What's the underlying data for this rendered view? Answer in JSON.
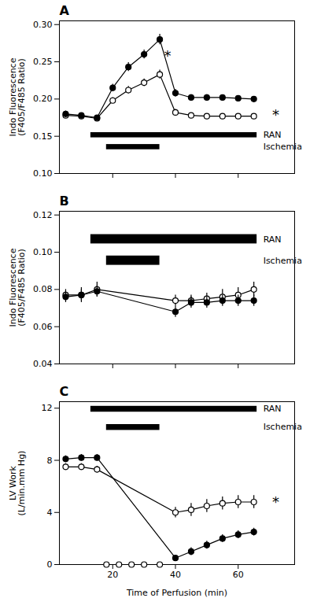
{
  "chart_data": [
    {
      "type": "line",
      "title": "A",
      "ylabel": "Indo Fluorescence\n(F405/F485 Ratio)",
      "xlim": [
        3,
        78
      ],
      "xticks": [
        20,
        40,
        60
      ],
      "ylim": [
        0.1,
        0.305
      ],
      "yticks": [
        {
          "value": 0.1,
          "label": "0.10"
        },
        0.15,
        {
          "value": 0.2,
          "label": "0.20"
        },
        0.25,
        {
          "value": 0.3,
          "label": "0.30"
        }
      ],
      "tick_labels": "y",
      "series": [
        {
          "color": "black",
          "marker": "filled_circle",
          "x": [
            5,
            10,
            15,
            20,
            25,
            30,
            35,
            40,
            45,
            50,
            55,
            60,
            65
          ],
          "values": [
            0.18,
            0.178,
            0.175,
            0.215,
            0.243,
            0.26,
            0.28,
            0.208,
            0.202,
            0.202,
            0.202,
            0.201,
            0.2
          ],
          "error": [
            0.004,
            0.003,
            0.003,
            0.005,
            0.006,
            0.006,
            0.007,
            0.005,
            0.004,
            0.004,
            0.003,
            0.003,
            0.003
          ]
        },
        {
          "color": "black",
          "marker": "open_circle",
          "x": [
            5,
            10,
            15,
            20,
            25,
            30,
            35,
            40,
            45,
            50,
            55,
            60,
            65
          ],
          "values": [
            0.178,
            0.177,
            0.174,
            0.198,
            0.212,
            0.222,
            0.233,
            0.182,
            0.178,
            0.177,
            0.177,
            0.177,
            0.177
          ],
          "error": [
            0.004,
            0.003,
            0.003,
            0.004,
            0.005,
            0.005,
            0.006,
            0.004,
            0.003,
            0.003,
            0.003,
            0.003,
            0.003
          ]
        }
      ],
      "annotations": [
        {
          "text": "*",
          "x": 37.5,
          "y": 0.258
        },
        {
          "text": "*",
          "x": 72,
          "y": 0.178
        }
      ],
      "bands": [
        {
          "text": "RAN",
          "x0": 13,
          "x1": 66,
          "y": 0.148,
          "height": 0.007,
          "text_x": 68,
          "text_y": 0.1515
        },
        {
          "text": "Ischemia",
          "x0": 18,
          "x1": 35,
          "y": 0.132,
          "height": 0.007,
          "text_x": 68,
          "text_y": 0.1355
        }
      ]
    },
    {
      "type": "line",
      "title": "B",
      "ylabel": "Indo Fluorescence\n(F405/F485 Ratio)",
      "xlim": [
        3,
        78
      ],
      "xticks": [
        20,
        40,
        60
      ],
      "ylim": [
        0.04,
        0.122
      ],
      "yticks": [
        0.04,
        0.06,
        0.08,
        {
          "value": 0.1,
          "label": "0.10"
        },
        0.12
      ],
      "tick_labels": "y",
      "series": [
        {
          "color": "black",
          "marker": "filled_circle",
          "x": [
            5,
            10,
            15,
            40,
            45,
            50,
            55,
            60,
            65
          ],
          "values": [
            0.076,
            0.077,
            0.079,
            0.068,
            0.073,
            0.073,
            0.074,
            0.074,
            0.074
          ],
          "error": [
            0.003,
            0.003,
            0.003,
            0.003,
            0.003,
            0.003,
            0.003,
            0.003,
            0.003
          ]
        },
        {
          "color": "black",
          "marker": "open_circle",
          "x": [
            5,
            10,
            15,
            40,
            45,
            50,
            55,
            60,
            65
          ],
          "values": [
            0.077,
            0.077,
            0.08,
            0.074,
            0.074,
            0.075,
            0.076,
            0.077,
            0.08
          ],
          "error": [
            0.003,
            0.004,
            0.004,
            0.003,
            0.003,
            0.003,
            0.004,
            0.004,
            0.004
          ]
        }
      ],
      "bands": [
        {
          "text": "RAN",
          "x0": 13,
          "x1": 66,
          "y": 0.1045,
          "height": 0.005,
          "text_x": 68,
          "text_y": 0.107
        },
        {
          "text": "Ischemia",
          "x0": 18,
          "x1": 35,
          "y": 0.093,
          "height": 0.005,
          "text_x": 68,
          "text_y": 0.0955
        }
      ]
    },
    {
      "type": "line",
      "title": "C",
      "ylabel": "LV Work\n(L/min.mm Hg)",
      "xlabel": "Time of Perfusion (min)",
      "xlim": [
        3,
        78
      ],
      "xticks": [
        20,
        40,
        60
      ],
      "ylim": [
        0,
        12.5
      ],
      "yticks": [
        0,
        4,
        8,
        12
      ],
      "series": [
        {
          "color": "black",
          "marker": "filled_circle",
          "x": [
            5,
            10,
            15,
            40,
            45,
            50,
            55,
            60,
            65
          ],
          "values": [
            8.1,
            8.2,
            8.2,
            0.5,
            1.0,
            1.5,
            2.0,
            2.3,
            2.5
          ],
          "error": [
            0.25,
            0.25,
            0.25,
            0.2,
            0.3,
            0.3,
            0.3,
            0.3,
            0.3
          ]
        },
        {
          "color": "black",
          "marker": "open_circle",
          "x": [
            5,
            10,
            15,
            40,
            45,
            50,
            55,
            60,
            65
          ],
          "values": [
            7.5,
            7.5,
            7.3,
            4.0,
            4.2,
            4.5,
            4.7,
            4.8,
            4.8
          ],
          "error": [
            0.25,
            0.25,
            0.25,
            0.4,
            0.5,
            0.5,
            0.5,
            0.5,
            0.5
          ]
        },
        {
          "type": "scatter",
          "color": "black",
          "marker": "open_circle",
          "x": [
            18,
            22,
            26,
            30,
            35
          ],
          "values": [
            0.0,
            0.0,
            0.0,
            0.0,
            0.0
          ]
        }
      ],
      "annotations": [
        {
          "text": "*",
          "x": 72,
          "y": 4.8
        }
      ],
      "bands": [
        {
          "text": "RAN",
          "x0": 13,
          "x1": 66,
          "y": 11.7,
          "height": 0.45,
          "text_x": 68,
          "text_y": 11.95
        },
        {
          "text": "Ischemia",
          "x0": 18,
          "x1": 35,
          "y": 10.3,
          "height": 0.45,
          "text_x": 68,
          "text_y": 10.55
        }
      ]
    }
  ]
}
